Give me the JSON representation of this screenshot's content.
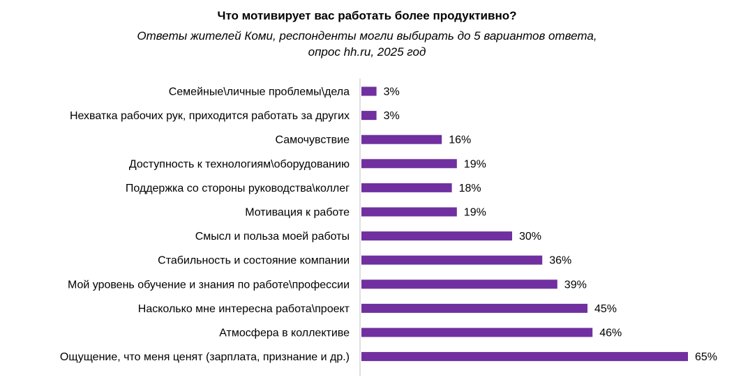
{
  "chart_data": {
    "type": "bar",
    "orientation": "horizontal",
    "title": "Что мотивирует вас работать более продуктивно?",
    "subtitle_lines": [
      "Ответы жителей Коми, респонденты могли выбирать до 5 вариантов ответа,",
      "опрос hh.ru, 2025 год"
    ],
    "categories": [
      "Семейные\\личные проблемы\\дела",
      "Нехватка рабочих рук, приходится работать за других",
      "Самочувствие",
      "Доступность к технологиям\\оборудованию",
      "Поддержка со стороны руководства\\коллег",
      "Мотивация к работе",
      "Смысл и польза моей работы",
      "Стабильность и состояние компании",
      "Мой уровень обучение и знания по работе\\профессии",
      "Насколько мне интересна работа\\проект",
      "Атмосфера в коллективе",
      "Ощущение, что меня ценят (зарплата, признание и др.)"
    ],
    "values": [
      3,
      3,
      16,
      19,
      18,
      19,
      30,
      36,
      39,
      45,
      46,
      65
    ],
    "value_labels": [
      "3%",
      "3%",
      "16%",
      "19%",
      "18%",
      "19%",
      "30%",
      "36%",
      "39%",
      "45%",
      "46%",
      "65%"
    ],
    "unit": "%",
    "bar_color": "#7030A0",
    "axis_color": "#BFBFBF",
    "grid": false,
    "legend": "none"
  }
}
